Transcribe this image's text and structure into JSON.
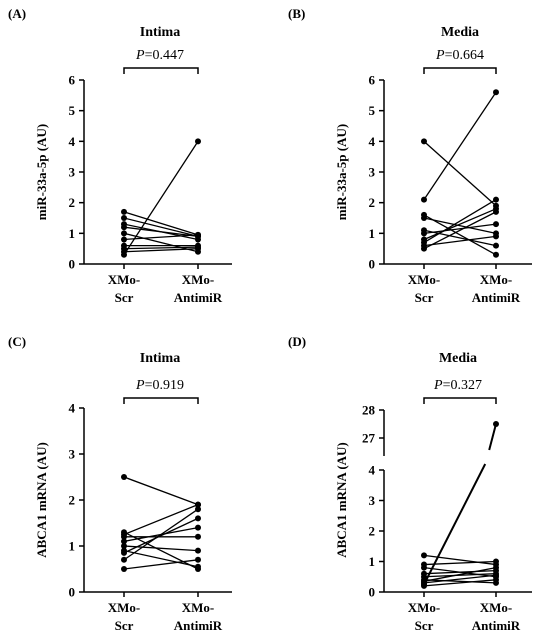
{
  "chart_data": [
    {
      "type": "paired-line",
      "panel": "(A)",
      "title": "Intima",
      "p_label": "P",
      "p_value": "=0.447",
      "ylabel": "miR-33a-5p (AU)",
      "ylim": [
        0,
        6
      ],
      "yticks": [
        "0",
        "1",
        "2",
        "3",
        "4",
        "5",
        "6"
      ],
      "categories": [
        [
          "XMo-",
          "Scr"
        ],
        [
          "XMo-",
          "AntimiR"
        ]
      ],
      "pairs": [
        [
          1.7,
          0.95
        ],
        [
          1.5,
          0.9
        ],
        [
          1.3,
          0.8
        ],
        [
          1.2,
          0.9
        ],
        [
          1.0,
          0.4
        ],
        [
          0.8,
          0.95
        ],
        [
          0.6,
          0.6
        ],
        [
          0.5,
          0.55
        ],
        [
          0.4,
          0.5
        ],
        [
          0.3,
          4.0
        ]
      ]
    },
    {
      "type": "paired-line",
      "panel": "(B)",
      "title": "Media",
      "p_label": "P",
      "p_value": "=0.664",
      "ylabel": "miR-33a-5p (AU)",
      "ylim": [
        0,
        6
      ],
      "yticks": [
        "0",
        "1",
        "2",
        "3",
        "4",
        "5",
        "6"
      ],
      "categories": [
        [
          "XMo-",
          "Scr"
        ],
        [
          "XMo-",
          "AntimiR"
        ]
      ],
      "pairs": [
        [
          4.0,
          1.9
        ],
        [
          2.1,
          5.6
        ],
        [
          1.6,
          0.3
        ],
        [
          1.5,
          1.0
        ],
        [
          1.1,
          0.6
        ],
        [
          1.0,
          1.3
        ],
        [
          0.8,
          1.8
        ],
        [
          0.7,
          2.1
        ],
        [
          0.6,
          0.9
        ],
        [
          0.5,
          1.7
        ]
      ]
    },
    {
      "type": "paired-line",
      "panel": "(C)",
      "title": "Intima",
      "p_label": "P",
      "p_value": "=0.919",
      "ylabel": "ABCA1 mRNA (AU)",
      "ylim": [
        0,
        4
      ],
      "yticks": [
        "0",
        "1",
        "2",
        "3",
        "4"
      ],
      "categories": [
        [
          "XMo-",
          "Scr"
        ],
        [
          "XMo-",
          "AntimiR"
        ]
      ],
      "pairs": [
        [
          2.5,
          1.9
        ],
        [
          1.3,
          0.5
        ],
        [
          1.25,
          1.9
        ],
        [
          1.2,
          1.2
        ],
        [
          1.1,
          1.4
        ],
        [
          1.0,
          0.9
        ],
        [
          0.9,
          0.55
        ],
        [
          0.85,
          1.6
        ],
        [
          0.7,
          1.8
        ],
        [
          0.5,
          0.7
        ]
      ]
    },
    {
      "type": "paired-line",
      "panel": "(D)",
      "title": "Media",
      "p_label": "P",
      "p_value": "=0.327",
      "ylabel": "ABCA1 mRNA (AU)",
      "ylim": [
        0,
        28
      ],
      "y_axis_break": [
        4,
        26.5
      ],
      "yticks": [
        "0",
        "1",
        "2",
        "3",
        "4",
        "27",
        "28"
      ],
      "categories": [
        [
          "XMo-",
          "Scr"
        ],
        [
          "XMo-",
          "AntimiR"
        ]
      ],
      "pairs": [
        [
          1.2,
          0.9
        ],
        [
          0.9,
          1.0
        ],
        [
          0.8,
          0.5
        ],
        [
          0.6,
          0.7
        ],
        [
          0.5,
          0.6
        ],
        [
          0.4,
          0.3
        ],
        [
          0.35,
          0.8
        ],
        [
          0.3,
          0.55
        ],
        [
          0.25,
          27.5
        ],
        [
          0.2,
          0.4
        ]
      ]
    }
  ]
}
